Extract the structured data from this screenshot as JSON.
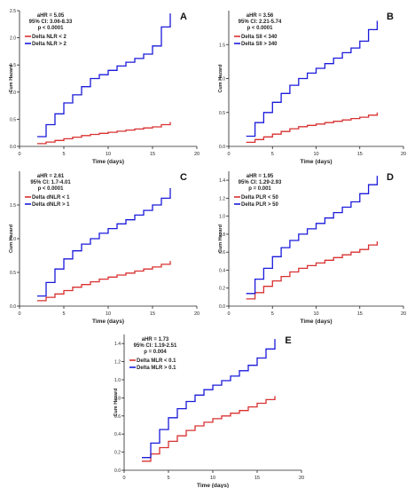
{
  "chart_data": [
    {
      "type": "line",
      "panel_letter": "A",
      "xlabel": "Time (days)",
      "ylabel": "Cum Hazard",
      "xlim": [
        0,
        20
      ],
      "ylim": [
        0,
        2.5
      ],
      "xticks": [
        "0",
        "5",
        "10",
        "15",
        "20"
      ],
      "yticks": [
        "0.0",
        "0.5",
        "1.0",
        "1.5",
        "2.0",
        "2.5"
      ],
      "stats": [
        "aHR = 5.05",
        "95% CI: 3.06-8.33",
        "p < 0.0001"
      ],
      "legend": [
        "Delta NLR < 2",
        "Delta NLR > 2"
      ],
      "colors": [
        "#d93030",
        "#1a1adc"
      ],
      "series": [
        {
          "name": "Delta NLR < 2",
          "x": [
            2,
            3,
            4,
            5,
            6,
            7,
            8,
            9,
            10,
            11,
            12,
            13,
            14,
            15,
            16,
            17
          ],
          "y": [
            0.05,
            0.08,
            0.11,
            0.14,
            0.17,
            0.2,
            0.22,
            0.24,
            0.26,
            0.28,
            0.3,
            0.32,
            0.34,
            0.36,
            0.4,
            0.45
          ]
        },
        {
          "name": "Delta NLR > 2",
          "x": [
            2,
            3,
            4,
            5,
            6,
            7,
            8,
            9,
            10,
            11,
            12,
            13,
            14,
            15,
            16,
            17
          ],
          "y": [
            0.18,
            0.4,
            0.6,
            0.8,
            0.95,
            1.1,
            1.25,
            1.32,
            1.4,
            1.48,
            1.55,
            1.62,
            1.7,
            1.85,
            2.2,
            2.45
          ]
        }
      ]
    },
    {
      "type": "line",
      "panel_letter": "B",
      "xlabel": "Time (days)",
      "ylabel": "Cum Hazard",
      "xlim": [
        0,
        20
      ],
      "ylim": [
        0,
        2.0
      ],
      "xticks": [
        "0",
        "5",
        "10",
        "15",
        "20"
      ],
      "yticks": [
        "0.0",
        "0.5",
        "1.0",
        "1.5"
      ],
      "stats": [
        "aHR = 3.56",
        "95% CI: 2.21-5.74",
        "p < 0.0001"
      ],
      "legend": [
        "Delta SII < 340",
        "Delta SII > 340"
      ],
      "colors": [
        "#d93030",
        "#1a1adc"
      ],
      "series": [
        {
          "name": "Delta SII < 340",
          "x": [
            2,
            3,
            4,
            5,
            6,
            7,
            8,
            9,
            10,
            11,
            12,
            13,
            14,
            15,
            16,
            17
          ],
          "y": [
            0.06,
            0.1,
            0.14,
            0.18,
            0.22,
            0.26,
            0.29,
            0.31,
            0.33,
            0.35,
            0.37,
            0.39,
            0.41,
            0.43,
            0.46,
            0.5
          ]
        },
        {
          "name": "Delta SII > 340",
          "x": [
            2,
            3,
            4,
            5,
            6,
            7,
            8,
            9,
            10,
            11,
            12,
            13,
            14,
            15,
            16,
            17
          ],
          "y": [
            0.15,
            0.35,
            0.5,
            0.65,
            0.78,
            0.9,
            1.0,
            1.08,
            1.15,
            1.22,
            1.3,
            1.38,
            1.45,
            1.55,
            1.72,
            1.85
          ]
        }
      ]
    },
    {
      "type": "line",
      "panel_letter": "C",
      "xlabel": "Time (days)",
      "ylabel": "Cum Hazard",
      "xlim": [
        0,
        20
      ],
      "ylim": [
        0,
        2.0
      ],
      "xticks": [
        "0",
        "5",
        "10",
        "15",
        "20"
      ],
      "yticks": [
        "0.0",
        "0.5",
        "1.0",
        "1.5"
      ],
      "stats": [
        "aHR = 2.61",
        "95% CI: 1.7-4.01",
        "p < 0.0001"
      ],
      "legend": [
        "Delta dNLR < 1",
        "Delta dNLR > 1"
      ],
      "colors": [
        "#d93030",
        "#1a1adc"
      ],
      "series": [
        {
          "name": "Delta dNLR < 1",
          "x": [
            2,
            3,
            4,
            5,
            6,
            7,
            8,
            9,
            10,
            11,
            12,
            13,
            14,
            15,
            16,
            17
          ],
          "y": [
            0.08,
            0.13,
            0.18,
            0.23,
            0.28,
            0.32,
            0.36,
            0.4,
            0.43,
            0.46,
            0.49,
            0.52,
            0.55,
            0.58,
            0.62,
            0.67
          ]
        },
        {
          "name": "Delta dNLR > 1",
          "x": [
            2,
            3,
            4,
            5,
            6,
            7,
            8,
            9,
            10,
            11,
            12,
            13,
            14,
            15,
            16,
            17
          ],
          "y": [
            0.15,
            0.35,
            0.55,
            0.7,
            0.82,
            0.92,
            1.0,
            1.08,
            1.15,
            1.22,
            1.28,
            1.35,
            1.42,
            1.5,
            1.6,
            1.75
          ]
        }
      ]
    },
    {
      "type": "line",
      "panel_letter": "D",
      "xlabel": "Time (days)",
      "ylabel": "Cum Hazard",
      "xlim": [
        0,
        20
      ],
      "ylim": [
        0,
        1.5
      ],
      "xticks": [
        "0",
        "5",
        "10",
        "15",
        "20"
      ],
      "yticks": [
        "0.0",
        "0.2",
        "0.4",
        "0.6",
        "0.8",
        "1.0",
        "1.2",
        "1.4"
      ],
      "stats": [
        "aHR = 1.95",
        "95% CI: 1.29-2.93",
        "p = 0.001"
      ],
      "legend": [
        "Delta PLR < 50",
        "Delta PLR > 50"
      ],
      "colors": [
        "#d93030",
        "#1a1adc"
      ],
      "series": [
        {
          "name": "Delta PLR < 50",
          "x": [
            2,
            3,
            4,
            5,
            6,
            7,
            8,
            9,
            10,
            11,
            12,
            13,
            14,
            15,
            16,
            17
          ],
          "y": [
            0.08,
            0.15,
            0.22,
            0.28,
            0.33,
            0.38,
            0.42,
            0.45,
            0.48,
            0.51,
            0.54,
            0.57,
            0.6,
            0.63,
            0.68,
            0.72
          ]
        },
        {
          "name": "Delta PLR > 50",
          "x": [
            2,
            3,
            4,
            5,
            6,
            7,
            8,
            9,
            10,
            11,
            12,
            13,
            14,
            15,
            16,
            17
          ],
          "y": [
            0.14,
            0.3,
            0.42,
            0.55,
            0.65,
            0.73,
            0.8,
            0.86,
            0.92,
            0.98,
            1.04,
            1.1,
            1.16,
            1.25,
            1.35,
            1.45
          ]
        }
      ]
    },
    {
      "type": "line",
      "panel_letter": "E",
      "xlabel": "Time (days)",
      "ylabel": "Cum Hazard",
      "xlim": [
        0,
        20
      ],
      "ylim": [
        0,
        1.5
      ],
      "xticks": [
        "0",
        "5",
        "10",
        "15",
        "20"
      ],
      "yticks": [
        "0.0",
        "0.2",
        "0.4",
        "0.6",
        "0.8",
        "1.0",
        "1.2",
        "1.4"
      ],
      "stats": [
        "aHR = 1.73",
        "95% CI: 1.19-2.51",
        "p = 0.004"
      ],
      "legend": [
        "Delta MLR < 0.1",
        "Delta MLR > 0.1"
      ],
      "colors": [
        "#d93030",
        "#1a1adc"
      ],
      "series": [
        {
          "name": "Delta MLR < 0.1",
          "x": [
            2,
            3,
            4,
            5,
            6,
            7,
            8,
            9,
            10,
            11,
            12,
            13,
            14,
            15,
            16,
            17
          ],
          "y": [
            0.1,
            0.18,
            0.25,
            0.32,
            0.38,
            0.44,
            0.49,
            0.53,
            0.57,
            0.6,
            0.63,
            0.66,
            0.7,
            0.74,
            0.78,
            0.82
          ]
        },
        {
          "name": "Delta MLR > 0.1",
          "x": [
            2,
            3,
            4,
            5,
            6,
            7,
            8,
            9,
            10,
            11,
            12,
            13,
            14,
            15,
            16,
            17
          ],
          "y": [
            0.14,
            0.3,
            0.45,
            0.58,
            0.68,
            0.76,
            0.83,
            0.89,
            0.94,
            0.99,
            1.04,
            1.1,
            1.16,
            1.24,
            1.34,
            1.45
          ]
        }
      ]
    }
  ]
}
